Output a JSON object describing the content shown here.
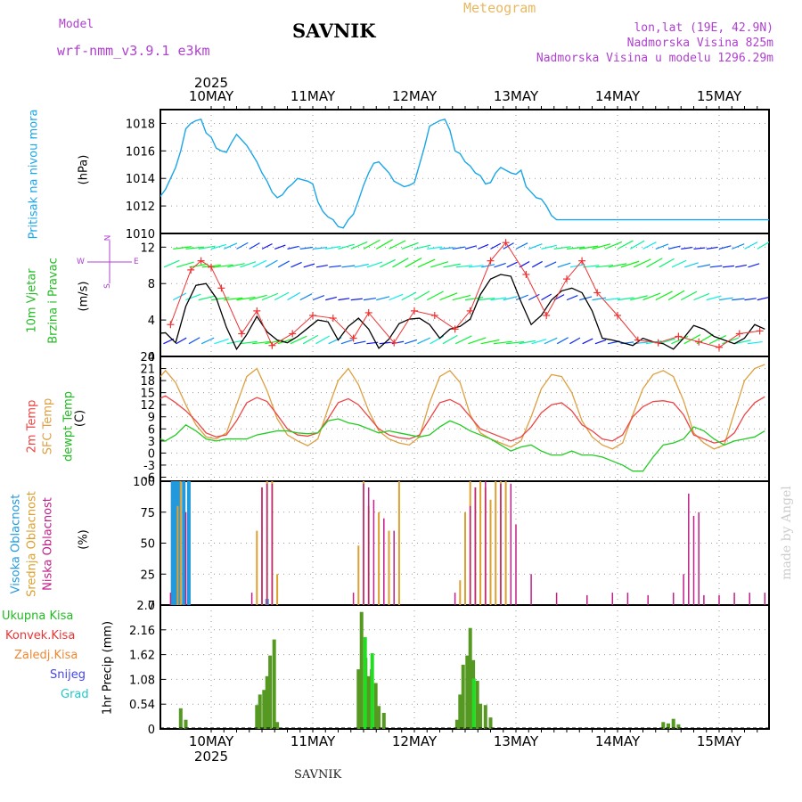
{
  "header": {
    "model_label": "Model",
    "model_name": "wrf-nmm_v3.9.1 e3km",
    "title": "SAVNIK",
    "subtitle": "Meteogram",
    "coords": "lon,lat (19E, 42.9N)",
    "elevation": "Nadmorska Visina 825m",
    "model_elevation": "Nadmorska Visina u modelu 1296.29m",
    "year": "2025",
    "footer_station": "SAVNIK",
    "watermark": "made by Angel"
  },
  "days": [
    "10MAY",
    "11MAY",
    "12MAY",
    "13MAY",
    "14MAY",
    "15MAY"
  ],
  "colors": {
    "pressure": "#1aa6e8",
    "wind_speed": "#000000",
    "gust": "#ee3333",
    "t2m": "#ee4444",
    "tsfc": "#dda040",
    "dewpt": "#22cc22",
    "high_cloud": "#2299dd",
    "mid_cloud": "#dda030",
    "low_cloud": "#c0208a",
    "precip": "#559922",
    "conv_precip": "#22dd22"
  },
  "panels": {
    "pressure": {
      "title": "Pritisak na nivou mora",
      "unit": "(hPa)",
      "ticks": [
        "1010",
        "1012",
        "1014",
        "1016",
        "1018"
      ]
    },
    "wind": {
      "title_line1": "10m Vjetar",
      "title_line2": "Brzina i Pravac",
      "unit": "(m/s)",
      "ticks": [
        "0",
        "4",
        "8",
        "12"
      ],
      "compass_n": "N",
      "compass_e": "E",
      "compass_w": "W",
      "compass_s": "S"
    },
    "temp": {
      "title_t2m": "2m Temp",
      "title_sfc": "SFC Temp",
      "title_dew": "dewpt Temp",
      "unit": "(C)",
      "ticks": [
        "-6",
        "-3",
        "0",
        "3",
        "6",
        "9",
        "12",
        "15",
        "18",
        "21",
        "24"
      ]
    },
    "cloud": {
      "title_high": "Visoka Oblacnost",
      "title_mid": "Srednja Oblacnost",
      "title_low": "Niska Oblacnost",
      "unit": "(%)",
      "ticks": [
        "0",
        "25",
        "50",
        "75",
        "100"
      ]
    },
    "precip": {
      "legend": [
        "Ukupna Kisa",
        "Konvek.Kisa",
        "Zaledj.Kisa",
        "Snijeg",
        "Grad"
      ],
      "unit": "1hr Precip (mm)",
      "ticks": [
        "0",
        "0.54",
        "1.08",
        "1.62",
        "2.16",
        "2.7"
      ]
    }
  },
  "chart_data": [
    {
      "type": "line",
      "title": "Pritisak na nivou mora",
      "ylabel": "hPa",
      "ylim": [
        1010,
        1019
      ],
      "x": [
        -0.55,
        -0.5,
        -0.45,
        -0.4,
        -0.35,
        -0.3,
        -0.25,
        -0.2,
        -0.15,
        -0.1,
        -0.05,
        0.0,
        0.05,
        0.1,
        0.15,
        0.2,
        0.25,
        0.3,
        0.35,
        0.4,
        0.45,
        0.5,
        0.55,
        0.6,
        0.65,
        0.7,
        0.75,
        0.8,
        0.85,
        0.9,
        0.95,
        1.0,
        1.05,
        1.1,
        1.15,
        1.2,
        1.25,
        1.3,
        1.35,
        1.4,
        1.45,
        1.5,
        1.55,
        1.6,
        1.65,
        1.7,
        1.75,
        1.8,
        1.85,
        1.9,
        1.95,
        2.0,
        2.05,
        2.1,
        2.15,
        2.2,
        2.25,
        2.3,
        2.35,
        2.4,
        2.45,
        2.5,
        2.55,
        2.6,
        2.65,
        2.7,
        2.75,
        2.8,
        2.85,
        2.9,
        2.95,
        3.0,
        3.05,
        3.1,
        3.15,
        3.2,
        3.25,
        3.3,
        3.35,
        3.4,
        3.45,
        3.5,
        3.55,
        3.6,
        3.65,
        3.7,
        3.75,
        3.8,
        3.85,
        3.9,
        3.95,
        4.0,
        4.05,
        4.1,
        4.15,
        4.2,
        4.25,
        4.3,
        4.35,
        4.4,
        4.45,
        4.5,
        4.55,
        4.6,
        4.65,
        4.7,
        4.75,
        4.8,
        4.85,
        4.9,
        4.95,
        5.0,
        5.05,
        5.1,
        5.15,
        5.2,
        5.25,
        5.3,
        5.35,
        5.4,
        5.45,
        5.5
      ],
      "y": [
        1013.0,
        1012.7,
        1013.2,
        1014.0,
        1014.8,
        1016.0,
        1017.6,
        1018.0,
        1018.2,
        1018.3,
        1017.3,
        1017.0,
        1016.2,
        1016.0,
        1015.9,
        1016.6,
        1017.2,
        1016.8,
        1016.4,
        1015.8,
        1015.2,
        1014.4,
        1013.8,
        1013.0,
        1012.6,
        1012.8,
        1013.3,
        1013.6,
        1014.0,
        1013.9,
        1013.8,
        1013.6,
        1012.3,
        1011.6,
        1011.2,
        1011.0,
        1010.5,
        1010.4,
        1011.0,
        1011.4,
        1012.4,
        1013.5,
        1014.4,
        1015.1,
        1015.2,
        1014.8,
        1014.4,
        1013.8,
        1013.6,
        1013.4,
        1013.5,
        1013.7,
        1015.0,
        1016.3,
        1017.8,
        1018.0,
        1018.2,
        1018.3,
        1017.5,
        1016.0,
        1015.8,
        1015.2,
        1014.9,
        1014.4,
        1014.2,
        1013.6,
        1013.7,
        1014.4,
        1014.8,
        1014.6,
        1014.4,
        1014.3,
        1014.6,
        1013.4,
        1013.0,
        1012.6,
        1012.5,
        1012.0,
        1011.3,
        1011.0,
        1011.0,
        1011.0,
        1011.0,
        1011.0,
        1011.0,
        1011.0,
        1011.0,
        1011.0,
        1011.0,
        1011.0,
        1011.0,
        1011.0,
        1011.0,
        1011.0,
        1011.0,
        1011.0,
        1011.0,
        1011.0,
        1011.0,
        1011.0,
        1011.0,
        1011.0,
        1011.0,
        1011.0,
        1011.0,
        1011.0,
        1011.0,
        1011.0,
        1011.0,
        1011.0,
        1011.0,
        1011.0,
        1011.0,
        1011.0,
        1011.0,
        1011.0,
        1011.0,
        1011.0,
        1011.0,
        1011.0,
        1011.0,
        1011.0
      ]
    },
    {
      "type": "line",
      "title": "10m Vjetar Brzina i Pravac",
      "ylabel": "m/s",
      "ylim": [
        0,
        13.5
      ],
      "series": [
        {
          "name": "wind speed",
          "x": [
            -0.55,
            -0.45,
            -0.35,
            -0.25,
            -0.15,
            -0.05,
            0.05,
            0.15,
            0.25,
            0.35,
            0.45,
            0.55,
            0.65,
            0.75,
            0.85,
            0.95,
            1.05,
            1.15,
            1.25,
            1.35,
            1.45,
            1.55,
            1.65,
            1.75,
            1.85,
            1.95,
            2.05,
            2.15,
            2.25,
            2.35,
            2.45,
            2.55,
            2.65,
            2.75,
            2.85,
            2.95,
            3.05,
            3.15,
            3.25,
            3.35,
            3.45,
            3.55,
            3.65,
            3.75,
            3.85,
            3.95,
            4.05,
            4.15,
            4.25,
            4.35,
            4.45,
            4.55,
            4.65,
            4.75,
            4.85,
            4.95,
            5.05,
            5.15,
            5.25,
            5.35,
            5.45
          ],
          "y": [
            2.5,
            2.6,
            1.5,
            5.5,
            7.8,
            8.0,
            6.4,
            3.2,
            0.8,
            2.4,
            4.4,
            2.7,
            1.8,
            1.5,
            2.2,
            3.1,
            4.0,
            3.8,
            1.8,
            3.3,
            4.2,
            3.0,
            0.9,
            1.9,
            3.6,
            4.1,
            4.2,
            3.5,
            2.0,
            3.0,
            3.3,
            4.1,
            6.8,
            8.5,
            9.0,
            8.8,
            6.0,
            3.5,
            4.5,
            6.2,
            7.2,
            7.5,
            7.0,
            5.0,
            2.0,
            1.8,
            1.5,
            1.2,
            2.0,
            1.6,
            1.4,
            0.8,
            2.0,
            3.4,
            3.0,
            2.2,
            1.8,
            1.4,
            2.0,
            3.5,
            3.0
          ]
        },
        {
          "name": "gust",
          "x": [
            -0.4,
            -0.2,
            -0.1,
            0.0,
            0.1,
            0.3,
            0.45,
            0.6,
            0.8,
            1.0,
            1.2,
            1.4,
            1.55,
            1.8,
            2.0,
            2.2,
            2.4,
            2.55,
            2.75,
            2.9,
            3.1,
            3.3,
            3.5,
            3.65,
            3.8,
            4.0,
            4.2,
            4.4,
            4.6,
            4.8,
            5.0,
            5.2,
            5.4
          ],
          "y": [
            3.5,
            9.5,
            10.5,
            9.8,
            7.5,
            2.5,
            5.0,
            1.2,
            2.5,
            4.5,
            4.2,
            2.0,
            4.8,
            1.5,
            5.0,
            4.5,
            3.0,
            5.0,
            10.5,
            12.5,
            9.0,
            4.5,
            8.5,
            10.5,
            7.0,
            4.5,
            1.8,
            1.5,
            2.2,
            1.6,
            1.0,
            2.5,
            2.8
          ]
        }
      ]
    },
    {
      "type": "line",
      "title": "Temperature",
      "ylabel": "C",
      "ylim": [
        -7,
        24
      ],
      "x": [
        -0.55,
        -0.45,
        -0.35,
        -0.25,
        -0.15,
        -0.05,
        0.05,
        0.15,
        0.25,
        0.35,
        0.45,
        0.55,
        0.65,
        0.75,
        0.85,
        0.95,
        1.05,
        1.15,
        1.25,
        1.35,
        1.45,
        1.55,
        1.65,
        1.75,
        1.85,
        1.95,
        2.05,
        2.15,
        2.25,
        2.35,
        2.45,
        2.55,
        2.65,
        2.75,
        2.85,
        2.95,
        3.05,
        3.15,
        3.25,
        3.35,
        3.45,
        3.55,
        3.65,
        3.75,
        3.85,
        3.95,
        4.05,
        4.15,
        4.25,
        4.35,
        4.45,
        4.55,
        4.65,
        4.75,
        4.85,
        4.95,
        5.05,
        5.15,
        5.25,
        5.35,
        5.45
      ],
      "series": [
        {
          "name": "2m Temp",
          "y": [
            13.0,
            14.2,
            12.5,
            10.5,
            8.0,
            5.0,
            4.0,
            4.5,
            8.0,
            12.5,
            13.8,
            12.8,
            9.5,
            6.0,
            4.5,
            4.2,
            5.0,
            8.5,
            12.5,
            13.5,
            12.0,
            9.0,
            6.0,
            4.5,
            3.8,
            3.5,
            4.5,
            8.5,
            12.5,
            13.3,
            12.0,
            9.0,
            6.0,
            5.0,
            4.0,
            3.0,
            4.0,
            6.5,
            10.0,
            12.0,
            12.5,
            10.5,
            7.0,
            5.5,
            3.5,
            3.0,
            4.5,
            9.0,
            11.5,
            12.8,
            13.0,
            12.5,
            9.5,
            4.5,
            3.5,
            2.5,
            3.0,
            5.0,
            9.5,
            12.5,
            14.0
          ]
        },
        {
          "name": "SFC Temp",
          "y": [
            17.5,
            20.5,
            17.5,
            12.0,
            7.0,
            4.0,
            3.5,
            5.0,
            12.0,
            19.0,
            21.0,
            15.5,
            8.5,
            4.5,
            3.0,
            1.8,
            3.5,
            11.0,
            18.0,
            21.0,
            17.0,
            10.5,
            5.5,
            3.5,
            2.5,
            2.0,
            4.0,
            12.5,
            19.0,
            20.5,
            17.5,
            9.5,
            5.0,
            3.5,
            2.5,
            1.5,
            3.0,
            9.0,
            16.0,
            19.5,
            19.0,
            15.0,
            8.0,
            4.0,
            2.0,
            1.0,
            2.5,
            9.5,
            16.0,
            19.5,
            20.5,
            19.0,
            13.0,
            5.0,
            2.5,
            1.0,
            2.0,
            10.0,
            18.0,
            21.0,
            22.0
          ]
        },
        {
          "name": "dewpt Temp",
          "y": [
            4.0,
            3.0,
            4.5,
            7.0,
            5.5,
            3.5,
            3.0,
            3.5,
            3.5,
            3.5,
            4.5,
            5.0,
            5.5,
            5.5,
            5.0,
            4.8,
            5.0,
            8.0,
            8.5,
            7.5,
            7.0,
            6.0,
            5.0,
            5.5,
            5.0,
            4.5,
            4.0,
            4.5,
            6.5,
            8.0,
            7.0,
            5.5,
            4.5,
            3.5,
            2.0,
            0.5,
            1.5,
            2.0,
            0.5,
            -0.5,
            -0.5,
            0.5,
            -0.5,
            -0.5,
            -1.0,
            -2.0,
            -3.0,
            -4.5,
            -4.5,
            -1.0,
            2.0,
            2.5,
            3.5,
            6.5,
            5.5,
            3.5,
            2.0,
            3.0,
            3.5,
            4.0,
            5.5
          ]
        }
      ]
    },
    {
      "type": "bar",
      "title": "Oblacnost",
      "ylabel": "%",
      "ylim": [
        0,
        100
      ],
      "series": [
        {
          "name": "Visoka Oblacnost",
          "x": [
            -0.38,
            -0.36,
            -0.34,
            -0.31,
            -0.27,
            -0.22,
            0.55
          ],
          "values": [
            100,
            100,
            100,
            100,
            100,
            100,
            5
          ]
        },
        {
          "name": "Srednja Oblacnost",
          "x": [
            -0.33,
            -0.3,
            0.45,
            0.5,
            0.55,
            0.6,
            0.65,
            1.45,
            1.5,
            1.55,
            1.65,
            1.75,
            1.85,
            2.45,
            2.5,
            2.55,
            2.6,
            2.65,
            2.7,
            2.75,
            2.8,
            2.85,
            2.9
          ],
          "values": [
            80,
            100,
            60,
            95,
            100,
            100,
            25,
            48,
            100,
            80,
            75,
            60,
            100,
            20,
            75,
            100,
            95,
            100,
            95,
            85,
            100,
            100,
            100
          ]
        },
        {
          "name": "Niska Oblacnost",
          "x": [
            -0.4,
            -0.25,
            0.4,
            0.5,
            0.55,
            0.6,
            1.4,
            1.5,
            1.55,
            1.6,
            1.7,
            1.8,
            2.4,
            2.55,
            2.6,
            2.7,
            2.85,
            2.95,
            3.0,
            3.15,
            3.4,
            3.7,
            3.95,
            4.1,
            4.3,
            4.55,
            4.65,
            4.7,
            4.75,
            4.8,
            4.85,
            5.0,
            5.15,
            5.3,
            5.45
          ],
          "values": [
            10,
            75,
            10,
            95,
            98,
            98,
            10,
            98,
            95,
            85,
            70,
            60,
            10,
            80,
            95,
            100,
            98,
            98,
            65,
            25,
            10,
            8,
            10,
            10,
            8,
            10,
            25,
            90,
            72,
            75,
            8,
            8,
            10,
            10,
            10
          ]
        }
      ]
    },
    {
      "type": "bar",
      "title": "1hr Precip",
      "ylabel": "mm",
      "ylim": [
        0,
        2.7
      ],
      "series": [
        {
          "name": "Ukupna Kisa",
          "x": [
            -0.3,
            -0.25,
            0.45,
            0.48,
            0.52,
            0.55,
            0.58,
            0.62,
            0.65,
            1.45,
            1.48,
            1.52,
            1.55,
            1.58,
            1.62,
            1.65,
            1.7,
            2.42,
            2.45,
            2.48,
            2.52,
            2.55,
            2.58,
            2.62,
            2.65,
            2.7,
            2.75,
            4.45,
            4.5,
            4.55,
            4.6
          ],
          "values": [
            0.45,
            0.2,
            0.52,
            0.75,
            0.85,
            1.15,
            1.6,
            1.95,
            0.15,
            1.3,
            2.55,
            1.55,
            1.15,
            1.3,
            1.0,
            0.5,
            0.35,
            0.2,
            0.75,
            1.4,
            1.6,
            2.2,
            1.5,
            1.05,
            0.55,
            0.52,
            0.25,
            0.15,
            0.12,
            0.22,
            0.1
          ]
        },
        {
          "name": "Konvek.Kisa",
          "x": [
            1.48,
            1.55,
            2.55
          ],
          "values": [
            2.0,
            1.65,
            1.1
          ]
        }
      ]
    }
  ]
}
